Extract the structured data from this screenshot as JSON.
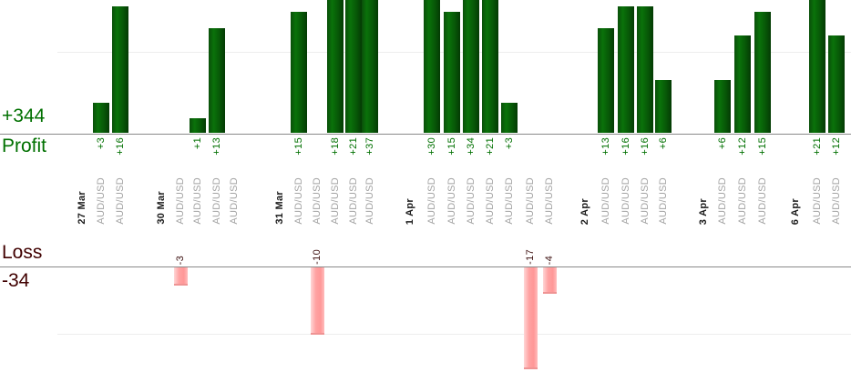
{
  "summary": {
    "profit_value": "+344",
    "profit_label": "Profit",
    "loss_label": "Loss",
    "loss_value": "-34"
  },
  "colors": {
    "profit_text": "#007000",
    "loss_text": "#400000",
    "profit_bar": "#0a720a",
    "loss_bar": "#ff9898",
    "axis_line": "#8a8a8a",
    "gridline": "#ededed",
    "date_text": "#1a1a1a",
    "pair_text": "#a3a3a3"
  },
  "chart_data": {
    "type": "bar",
    "title": "",
    "top_section_label": "Profit",
    "top_section_total": 344,
    "bottom_section_label": "Loss",
    "bottom_section_total": -34,
    "value_unit": "pips",
    "groups": [
      {
        "date": "27 Mar",
        "trades": [
          {
            "pair": "AUD/USD",
            "value": 3,
            "label": "+3"
          },
          {
            "pair": "AUD/USD",
            "value": 16,
            "label": "+16"
          }
        ]
      },
      {
        "date": "30 Mar",
        "trades": [
          {
            "pair": "AUD/USD",
            "value": -3,
            "label": "-3"
          },
          {
            "pair": "AUD/USD",
            "value": 1,
            "label": "+1"
          },
          {
            "pair": "AUD/USD",
            "value": 13,
            "label": "+13"
          },
          {
            "pair": "AUD/USD",
            "value": 0,
            "label": ""
          }
        ]
      },
      {
        "date": "31 Mar",
        "trades": [
          {
            "pair": "AUD/USD",
            "value": 15,
            "label": "+15"
          },
          {
            "pair": "AUD/USD",
            "value": -10,
            "label": "-10"
          },
          {
            "pair": "AUD/USD",
            "value": 18,
            "label": "+18"
          },
          {
            "pair": "AUD/USD",
            "value": 21,
            "label": "+21"
          },
          {
            "pair": "AUD/USD",
            "value": 37,
            "label": "+37"
          }
        ]
      },
      {
        "date": "1 Apr",
        "trades": [
          {
            "pair": "AUD/USD",
            "value": 30,
            "label": "+30"
          },
          {
            "pair": "AUD/USD",
            "value": 15,
            "label": "+15"
          },
          {
            "pair": "AUD/USD",
            "value": 34,
            "label": "+34"
          },
          {
            "pair": "AUD/USD",
            "value": 21,
            "label": "+21"
          },
          {
            "pair": "AUD/USD",
            "value": 3,
            "label": "+3"
          },
          {
            "pair": "AUD/USD",
            "value": -17,
            "label": "-17"
          },
          {
            "pair": "AUD/USD",
            "value": -4,
            "label": "-4"
          }
        ]
      },
      {
        "date": "2 Apr",
        "trades": [
          {
            "pair": "AUD/USD",
            "value": 13,
            "label": "+13"
          },
          {
            "pair": "AUD/USD",
            "value": 16,
            "label": "+16"
          },
          {
            "pair": "AUD/USD",
            "value": 16,
            "label": "+16"
          },
          {
            "pair": "AUD/USD",
            "value": 6,
            "label": "+6"
          }
        ]
      },
      {
        "date": "3 Apr",
        "trades": [
          {
            "pair": "AUD/USD",
            "value": 6,
            "label": "+6"
          },
          {
            "pair": "AUD/USD",
            "value": 12,
            "label": "+12"
          },
          {
            "pair": "AUD/USD",
            "value": 15,
            "label": "+15"
          }
        ]
      },
      {
        "date": "6 Apr",
        "trades": [
          {
            "pair": "AUD/USD",
            "value": 21,
            "label": "+21"
          },
          {
            "pair": "AUD/USD",
            "value": 12,
            "label": "+12"
          }
        ]
      }
    ]
  }
}
